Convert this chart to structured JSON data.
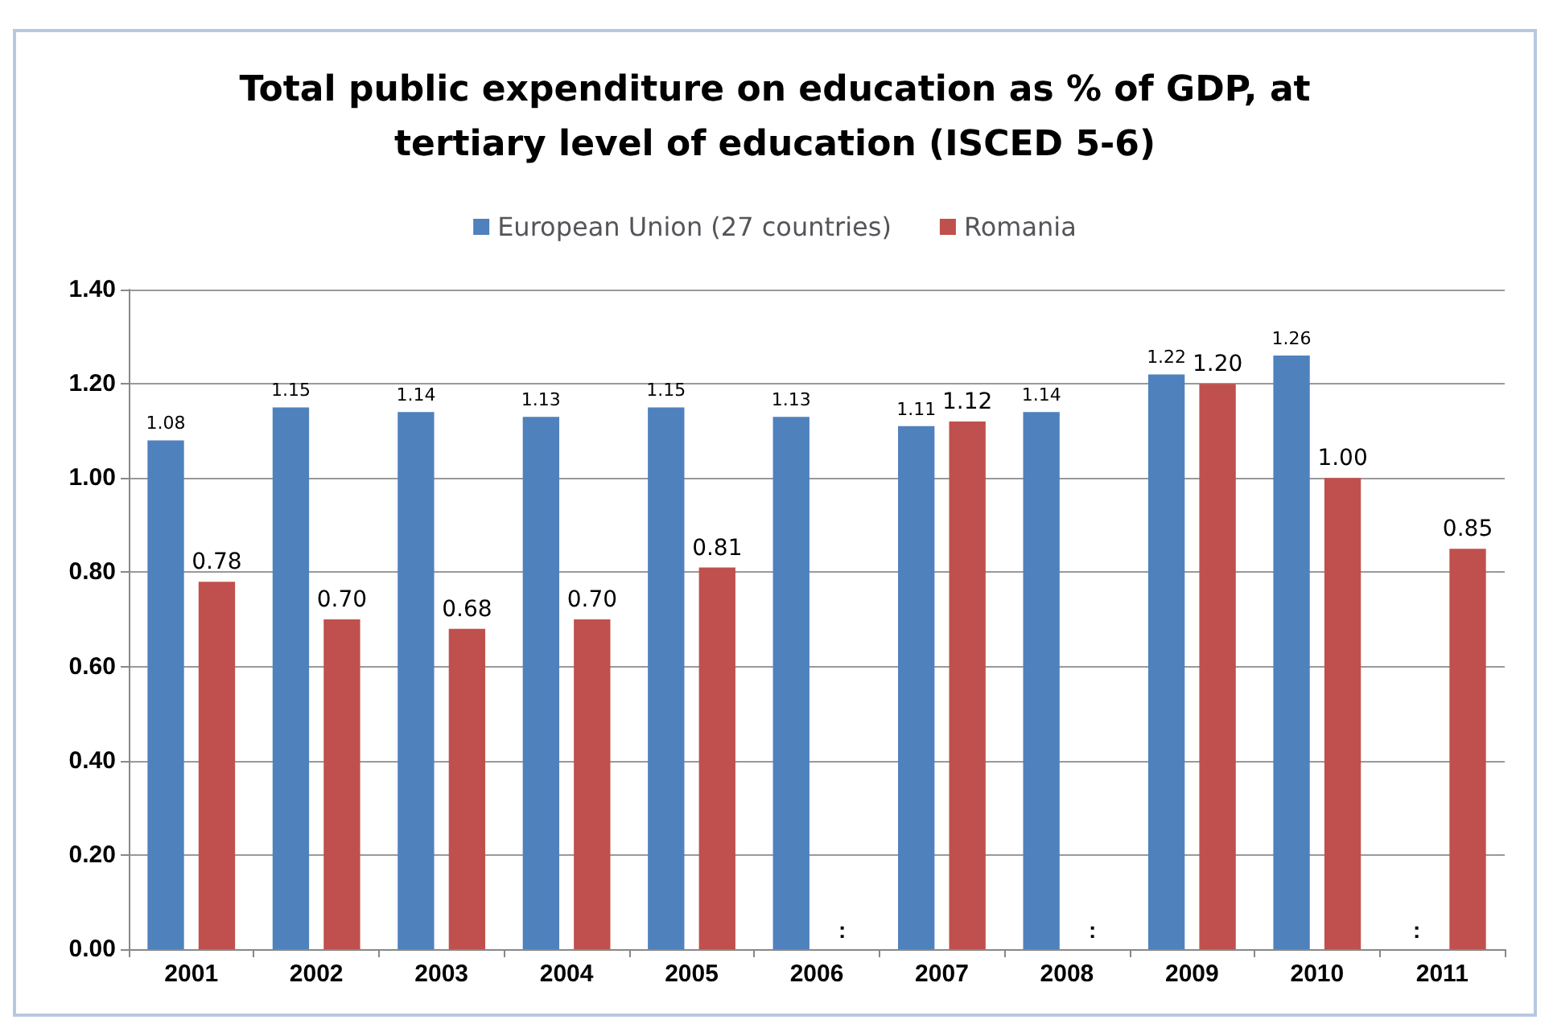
{
  "chart_data": {
    "type": "bar",
    "title": "Total public expenditure on education as % of GDP, at\ntertiary level of education (ISCED 5-6)",
    "categories": [
      "2001",
      "2002",
      "2003",
      "2004",
      "2005",
      "2006",
      "2007",
      "2008",
      "2009",
      "2010",
      "2011"
    ],
    "series": [
      {
        "name": "European Union (27 countries)",
        "color": "#4f81bd",
        "values": [
          1.08,
          1.15,
          1.14,
          1.13,
          1.15,
          1.13,
          1.11,
          1.14,
          1.22,
          1.26,
          null
        ],
        "value_labels": [
          "1.08",
          "1.15",
          "1.14",
          "1.13",
          "1.15",
          "1.13",
          "1.11",
          "1.14",
          "1.22",
          "1.26",
          ":"
        ]
      },
      {
        "name": "Romania",
        "color": "#c0504d",
        "values": [
          0.78,
          0.7,
          0.68,
          0.7,
          0.81,
          null,
          1.12,
          null,
          1.2,
          1.0,
          0.85
        ],
        "value_labels": [
          "0.78",
          "0.70",
          "0.68",
          "0.70",
          "0.81",
          ":",
          "1.12",
          ":",
          "1.20",
          "1.00",
          "0.85"
        ]
      }
    ],
    "ylim": [
      0,
      1.4
    ],
    "yticks": [
      {
        "value": 0,
        "label": "0.00"
      },
      {
        "value": 0.2,
        "label": "0.20"
      },
      {
        "value": 0.4,
        "label": "0.40"
      },
      {
        "value": 0.6,
        "label": "0.60"
      },
      {
        "value": 0.8,
        "label": "0.80"
      },
      {
        "value": 1,
        "label": "1.00"
      },
      {
        "value": 1.2,
        "label": "1.20"
      },
      {
        "value": 1.4,
        "label": "1.40"
      }
    ],
    "grid": "y",
    "legend": "top"
  }
}
